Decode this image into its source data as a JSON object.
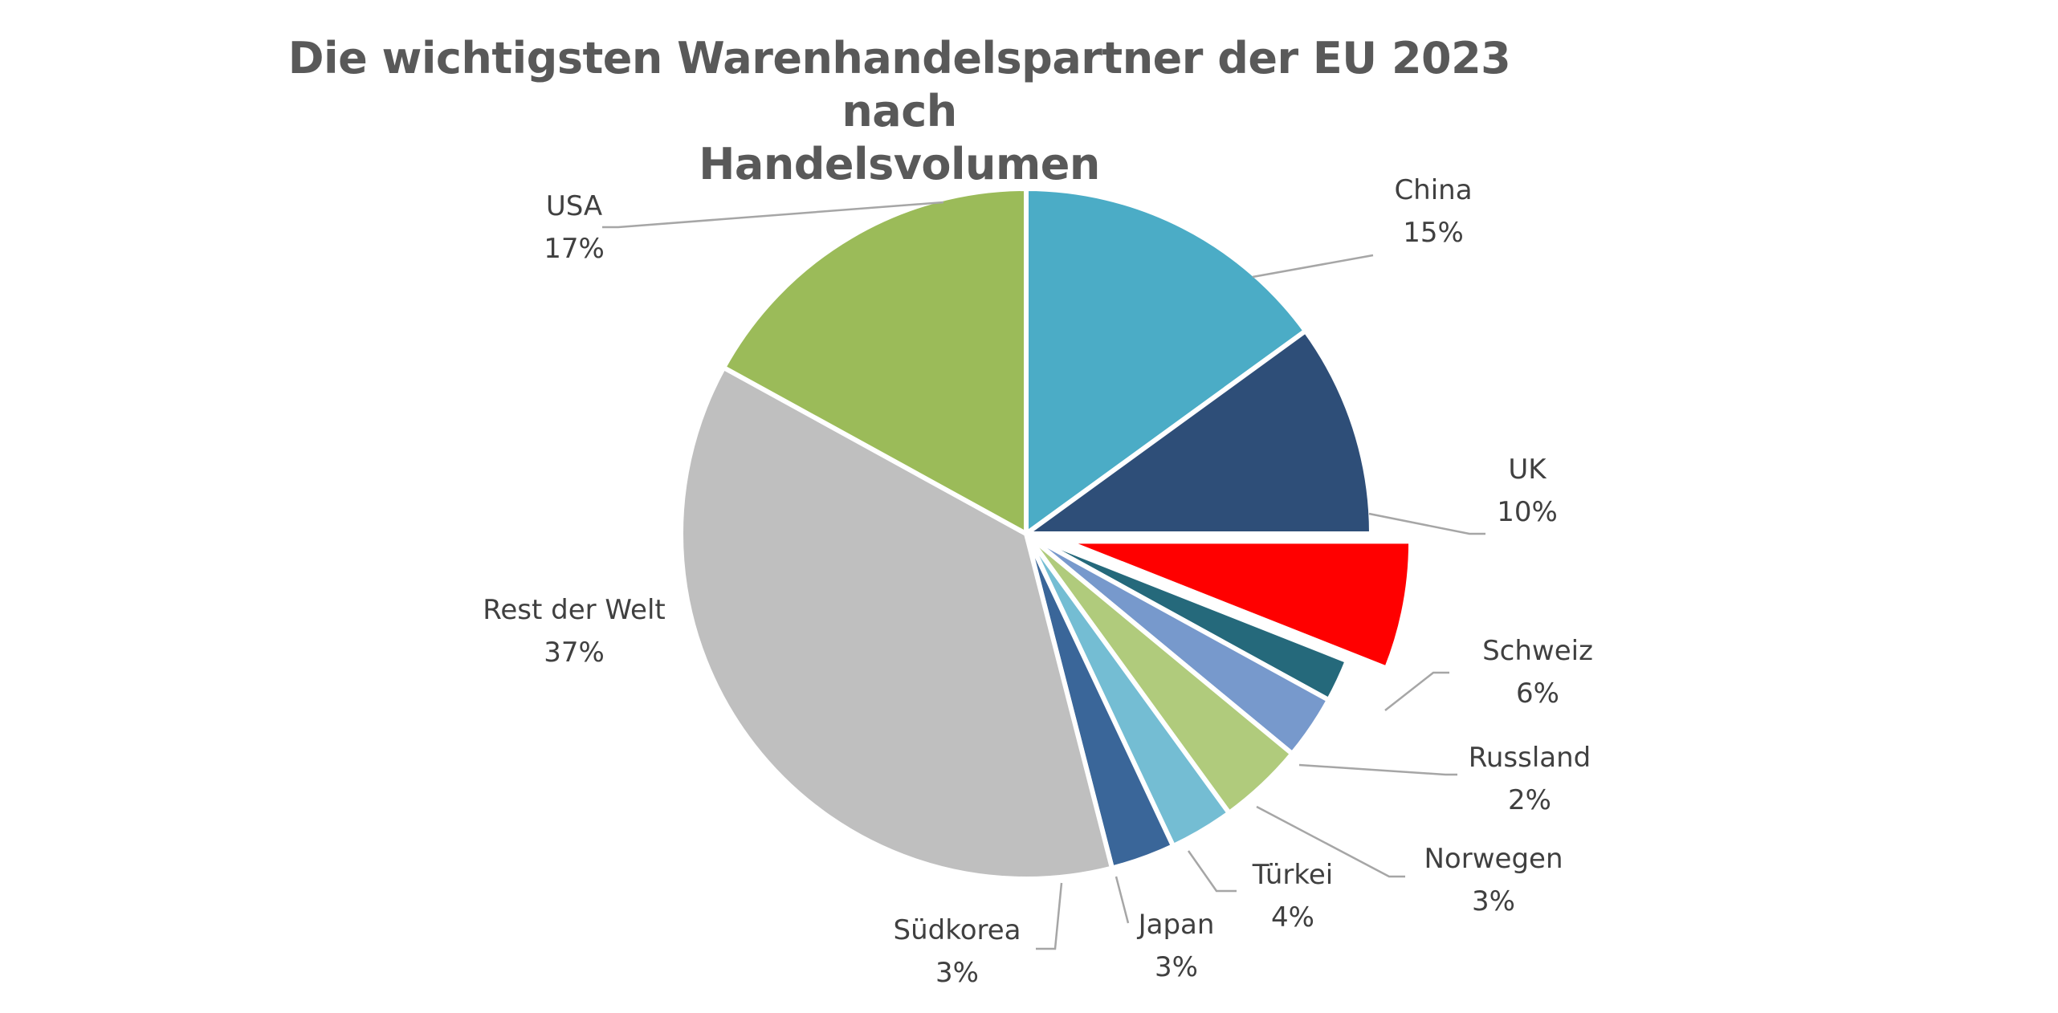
{
  "chart_data": {
    "type": "pie",
    "title_lines": [
      "Die wichtigsten Warenhandelspartner der EU 2023 nach",
      "Handelsvolumen"
    ],
    "unit": "%",
    "start_angle_deg": 0,
    "direction": "clockwise",
    "legend": "none",
    "slices": [
      {
        "name": "China",
        "value": 15,
        "label": "15%",
        "color": "#4BACC6",
        "exploded": false
      },
      {
        "name": "UK",
        "value": 10,
        "label": "10%",
        "color": "#2E4E78",
        "exploded": false
      },
      {
        "name": "Schweiz",
        "value": 6,
        "label": "6%",
        "color": "#FF0000",
        "exploded": true
      },
      {
        "name": "Russland",
        "value": 2,
        "label": "2%",
        "color": "#25697B",
        "exploded": false
      },
      {
        "name": "Norwegen",
        "value": 3,
        "label": "3%",
        "color": "#7799CC",
        "exploded": false
      },
      {
        "name": "Türkei",
        "value": 4,
        "label": "4%",
        "color": "#B0CB7C",
        "exploded": false
      },
      {
        "name": "Japan",
        "value": 3,
        "label": "3%",
        "color": "#74BDD3",
        "exploded": false
      },
      {
        "name": "Südkorea",
        "value": 3,
        "label": "3%",
        "color": "#3A6699",
        "exploded": false
      },
      {
        "name": "Rest der Welt",
        "value": 37,
        "label": "37%",
        "color": "#BFBFBF",
        "exploded": false
      },
      {
        "name": "USA",
        "value": 17,
        "label": "17%",
        "color": "#9BBB59",
        "exploded": false
      }
    ]
  }
}
